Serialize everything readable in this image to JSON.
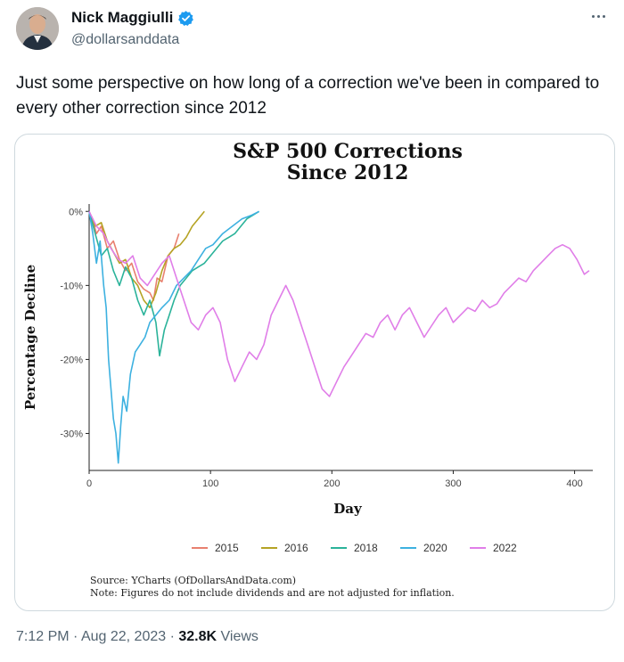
{
  "tweet": {
    "author_name": "Nick Maggiulli",
    "handle": "@dollarsanddata",
    "text": "Just some perspective on how long of a correction we've been in compared to every other correction since 2012",
    "time": "7:12 PM",
    "date": "Aug 22, 2023",
    "separator": "·",
    "views_count": "32.8K",
    "views_label": "Views"
  },
  "icons": {
    "avatar": "avatar-photo",
    "verified": "verified-badge-icon",
    "more": "more-options-icon"
  },
  "colors": {
    "verified": "#1d9bf0",
    "2015": "#e8806f",
    "2016": "#b5a324",
    "2018": "#2bb39a",
    "2020": "#3db1e0",
    "2022": "#e07ee8"
  },
  "chart_data": {
    "type": "line",
    "title_line1": "S&P 500 Corrections",
    "title_line2": "Since 2012",
    "xlabel": "Day",
    "ylabel": "Percentage Decline",
    "xlim": [
      0,
      415
    ],
    "ylim": [
      -35,
      1
    ],
    "x_ticks": [
      0,
      100,
      200,
      300,
      400
    ],
    "x_tick_labels": [
      "0",
      "100",
      "200",
      "300",
      "400"
    ],
    "y_ticks": [
      0,
      -10,
      -20,
      -30
    ],
    "y_tick_labels": [
      "0%",
      "-10%",
      "-20%",
      "-30%"
    ],
    "legend_position": "bottom",
    "source": "Source: YCharts (OfDollarsAndData.com)",
    "note": "Note: Figures do not include dividends and are not adjusted for inflation.",
    "series": [
      {
        "name": "2015",
        "color": "#e8806f",
        "points": [
          [
            0,
            0
          ],
          [
            3,
            -1.2
          ],
          [
            6,
            -3
          ],
          [
            10,
            -2
          ],
          [
            15,
            -5
          ],
          [
            20,
            -4
          ],
          [
            25,
            -6.5
          ],
          [
            30,
            -8
          ],
          [
            35,
            -7
          ],
          [
            40,
            -9.5
          ],
          [
            45,
            -10.5
          ],
          [
            50,
            -11
          ],
          [
            53,
            -12
          ],
          [
            56,
            -9
          ],
          [
            60,
            -9.5
          ],
          [
            65,
            -6
          ],
          [
            70,
            -5
          ],
          [
            74,
            -3
          ]
        ]
      },
      {
        "name": "2016",
        "color": "#b5a324",
        "points": [
          [
            0,
            0
          ],
          [
            5,
            -2
          ],
          [
            10,
            -1.5
          ],
          [
            15,
            -4
          ],
          [
            20,
            -5.5
          ],
          [
            25,
            -7
          ],
          [
            30,
            -6.5
          ],
          [
            35,
            -9
          ],
          [
            40,
            -10
          ],
          [
            45,
            -12
          ],
          [
            50,
            -13
          ],
          [
            55,
            -11
          ],
          [
            60,
            -8
          ],
          [
            65,
            -6
          ],
          [
            70,
            -5
          ],
          [
            75,
            -4.5
          ],
          [
            80,
            -3.5
          ],
          [
            85,
            -2
          ],
          [
            90,
            -1
          ],
          [
            95,
            0
          ]
        ]
      },
      {
        "name": "2018",
        "color": "#2bb39a",
        "points": [
          [
            0,
            0
          ],
          [
            5,
            -3
          ],
          [
            10,
            -6
          ],
          [
            15,
            -5
          ],
          [
            20,
            -8
          ],
          [
            25,
            -10
          ],
          [
            30,
            -7.5
          ],
          [
            35,
            -9
          ],
          [
            40,
            -12
          ],
          [
            45,
            -14
          ],
          [
            50,
            -12
          ],
          [
            55,
            -15
          ],
          [
            58,
            -19.5
          ],
          [
            62,
            -16
          ],
          [
            66,
            -14
          ],
          [
            70,
            -12
          ],
          [
            75,
            -10
          ],
          [
            80,
            -9
          ],
          [
            85,
            -8
          ],
          [
            90,
            -7.5
          ],
          [
            95,
            -7
          ],
          [
            100,
            -6
          ],
          [
            105,
            -5
          ],
          [
            110,
            -4
          ],
          [
            115,
            -3.5
          ],
          [
            120,
            -3
          ],
          [
            125,
            -2
          ],
          [
            130,
            -1
          ],
          [
            135,
            -0.5
          ],
          [
            140,
            0
          ]
        ]
      },
      {
        "name": "2020",
        "color": "#3db1e0",
        "points": [
          [
            0,
            0
          ],
          [
            3,
            -3
          ],
          [
            6,
            -7
          ],
          [
            9,
            -4
          ],
          [
            12,
            -10
          ],
          [
            14,
            -13
          ],
          [
            16,
            -20
          ],
          [
            18,
            -24
          ],
          [
            20,
            -28
          ],
          [
            22,
            -30
          ],
          [
            24,
            -34
          ],
          [
            26,
            -29
          ],
          [
            28,
            -25
          ],
          [
            31,
            -27
          ],
          [
            34,
            -22
          ],
          [
            38,
            -19
          ],
          [
            42,
            -18
          ],
          [
            46,
            -17
          ],
          [
            50,
            -15
          ],
          [
            55,
            -14
          ],
          [
            60,
            -13
          ],
          [
            66,
            -12
          ],
          [
            72,
            -10
          ],
          [
            78,
            -9
          ],
          [
            84,
            -8
          ],
          [
            90,
            -6.5
          ],
          [
            96,
            -5
          ],
          [
            102,
            -4.5
          ],
          [
            110,
            -3
          ],
          [
            118,
            -2
          ],
          [
            126,
            -1
          ],
          [
            134,
            -0.5
          ],
          [
            140,
            0
          ]
        ]
      },
      {
        "name": "2022",
        "color": "#e07ee8",
        "points": [
          [
            0,
            0
          ],
          [
            6,
            -2
          ],
          [
            12,
            -3
          ],
          [
            18,
            -5
          ],
          [
            24,
            -6.5
          ],
          [
            30,
            -7
          ],
          [
            36,
            -6
          ],
          [
            42,
            -9
          ],
          [
            48,
            -10
          ],
          [
            54,
            -8.5
          ],
          [
            60,
            -7
          ],
          [
            66,
            -6
          ],
          [
            72,
            -9
          ],
          [
            78,
            -12
          ],
          [
            84,
            -15
          ],
          [
            90,
            -16
          ],
          [
            96,
            -14
          ],
          [
            102,
            -13
          ],
          [
            108,
            -15
          ],
          [
            114,
            -20
          ],
          [
            120,
            -23
          ],
          [
            126,
            -21
          ],
          [
            132,
            -19
          ],
          [
            138,
            -20
          ],
          [
            144,
            -18
          ],
          [
            150,
            -14
          ],
          [
            156,
            -12
          ],
          [
            162,
            -10
          ],
          [
            168,
            -12
          ],
          [
            174,
            -15
          ],
          [
            180,
            -18
          ],
          [
            186,
            -21
          ],
          [
            192,
            -24
          ],
          [
            198,
            -25
          ],
          [
            204,
            -23
          ],
          [
            210,
            -21
          ],
          [
            216,
            -19.5
          ],
          [
            222,
            -18
          ],
          [
            228,
            -16.5
          ],
          [
            234,
            -17
          ],
          [
            240,
            -15
          ],
          [
            246,
            -14
          ],
          [
            252,
            -16
          ],
          [
            258,
            -14
          ],
          [
            264,
            -13
          ],
          [
            270,
            -15
          ],
          [
            276,
            -17
          ],
          [
            282,
            -15.5
          ],
          [
            288,
            -14
          ],
          [
            294,
            -13
          ],
          [
            300,
            -15
          ],
          [
            306,
            -14
          ],
          [
            312,
            -13
          ],
          [
            318,
            -13.5
          ],
          [
            324,
            -12
          ],
          [
            330,
            -13
          ],
          [
            336,
            -12.5
          ],
          [
            342,
            -11
          ],
          [
            348,
            -10
          ],
          [
            354,
            -9
          ],
          [
            360,
            -9.5
          ],
          [
            366,
            -8
          ],
          [
            372,
            -7
          ],
          [
            378,
            -6
          ],
          [
            384,
            -5
          ],
          [
            390,
            -4.5
          ],
          [
            396,
            -5
          ],
          [
            402,
            -6.5
          ],
          [
            408,
            -8.5
          ],
          [
            412,
            -8
          ]
        ]
      }
    ]
  }
}
